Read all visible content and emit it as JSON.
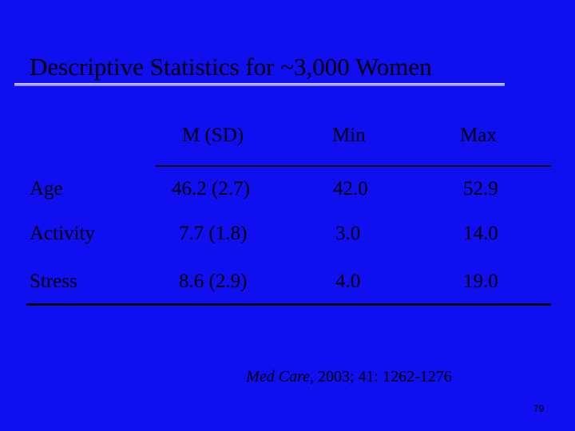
{
  "title": "Descriptive Statistics for ~3,000 Women",
  "table": {
    "header": [
      "M (SD)",
      "Min",
      "Max"
    ],
    "rows": [
      [
        "Age",
        "46.2 (2.7)",
        "42.0",
        "52.9"
      ],
      [
        "Activity",
        "7.7 (1.8)",
        "3.0",
        "14.0"
      ],
      [
        "Stress",
        "8.6 (2.9)",
        "4.0",
        "19.0"
      ]
    ]
  },
  "citation": {
    "journal": "Med Care",
    "details": ", 2003; 41: 1262-1276"
  },
  "page_number": "79"
}
